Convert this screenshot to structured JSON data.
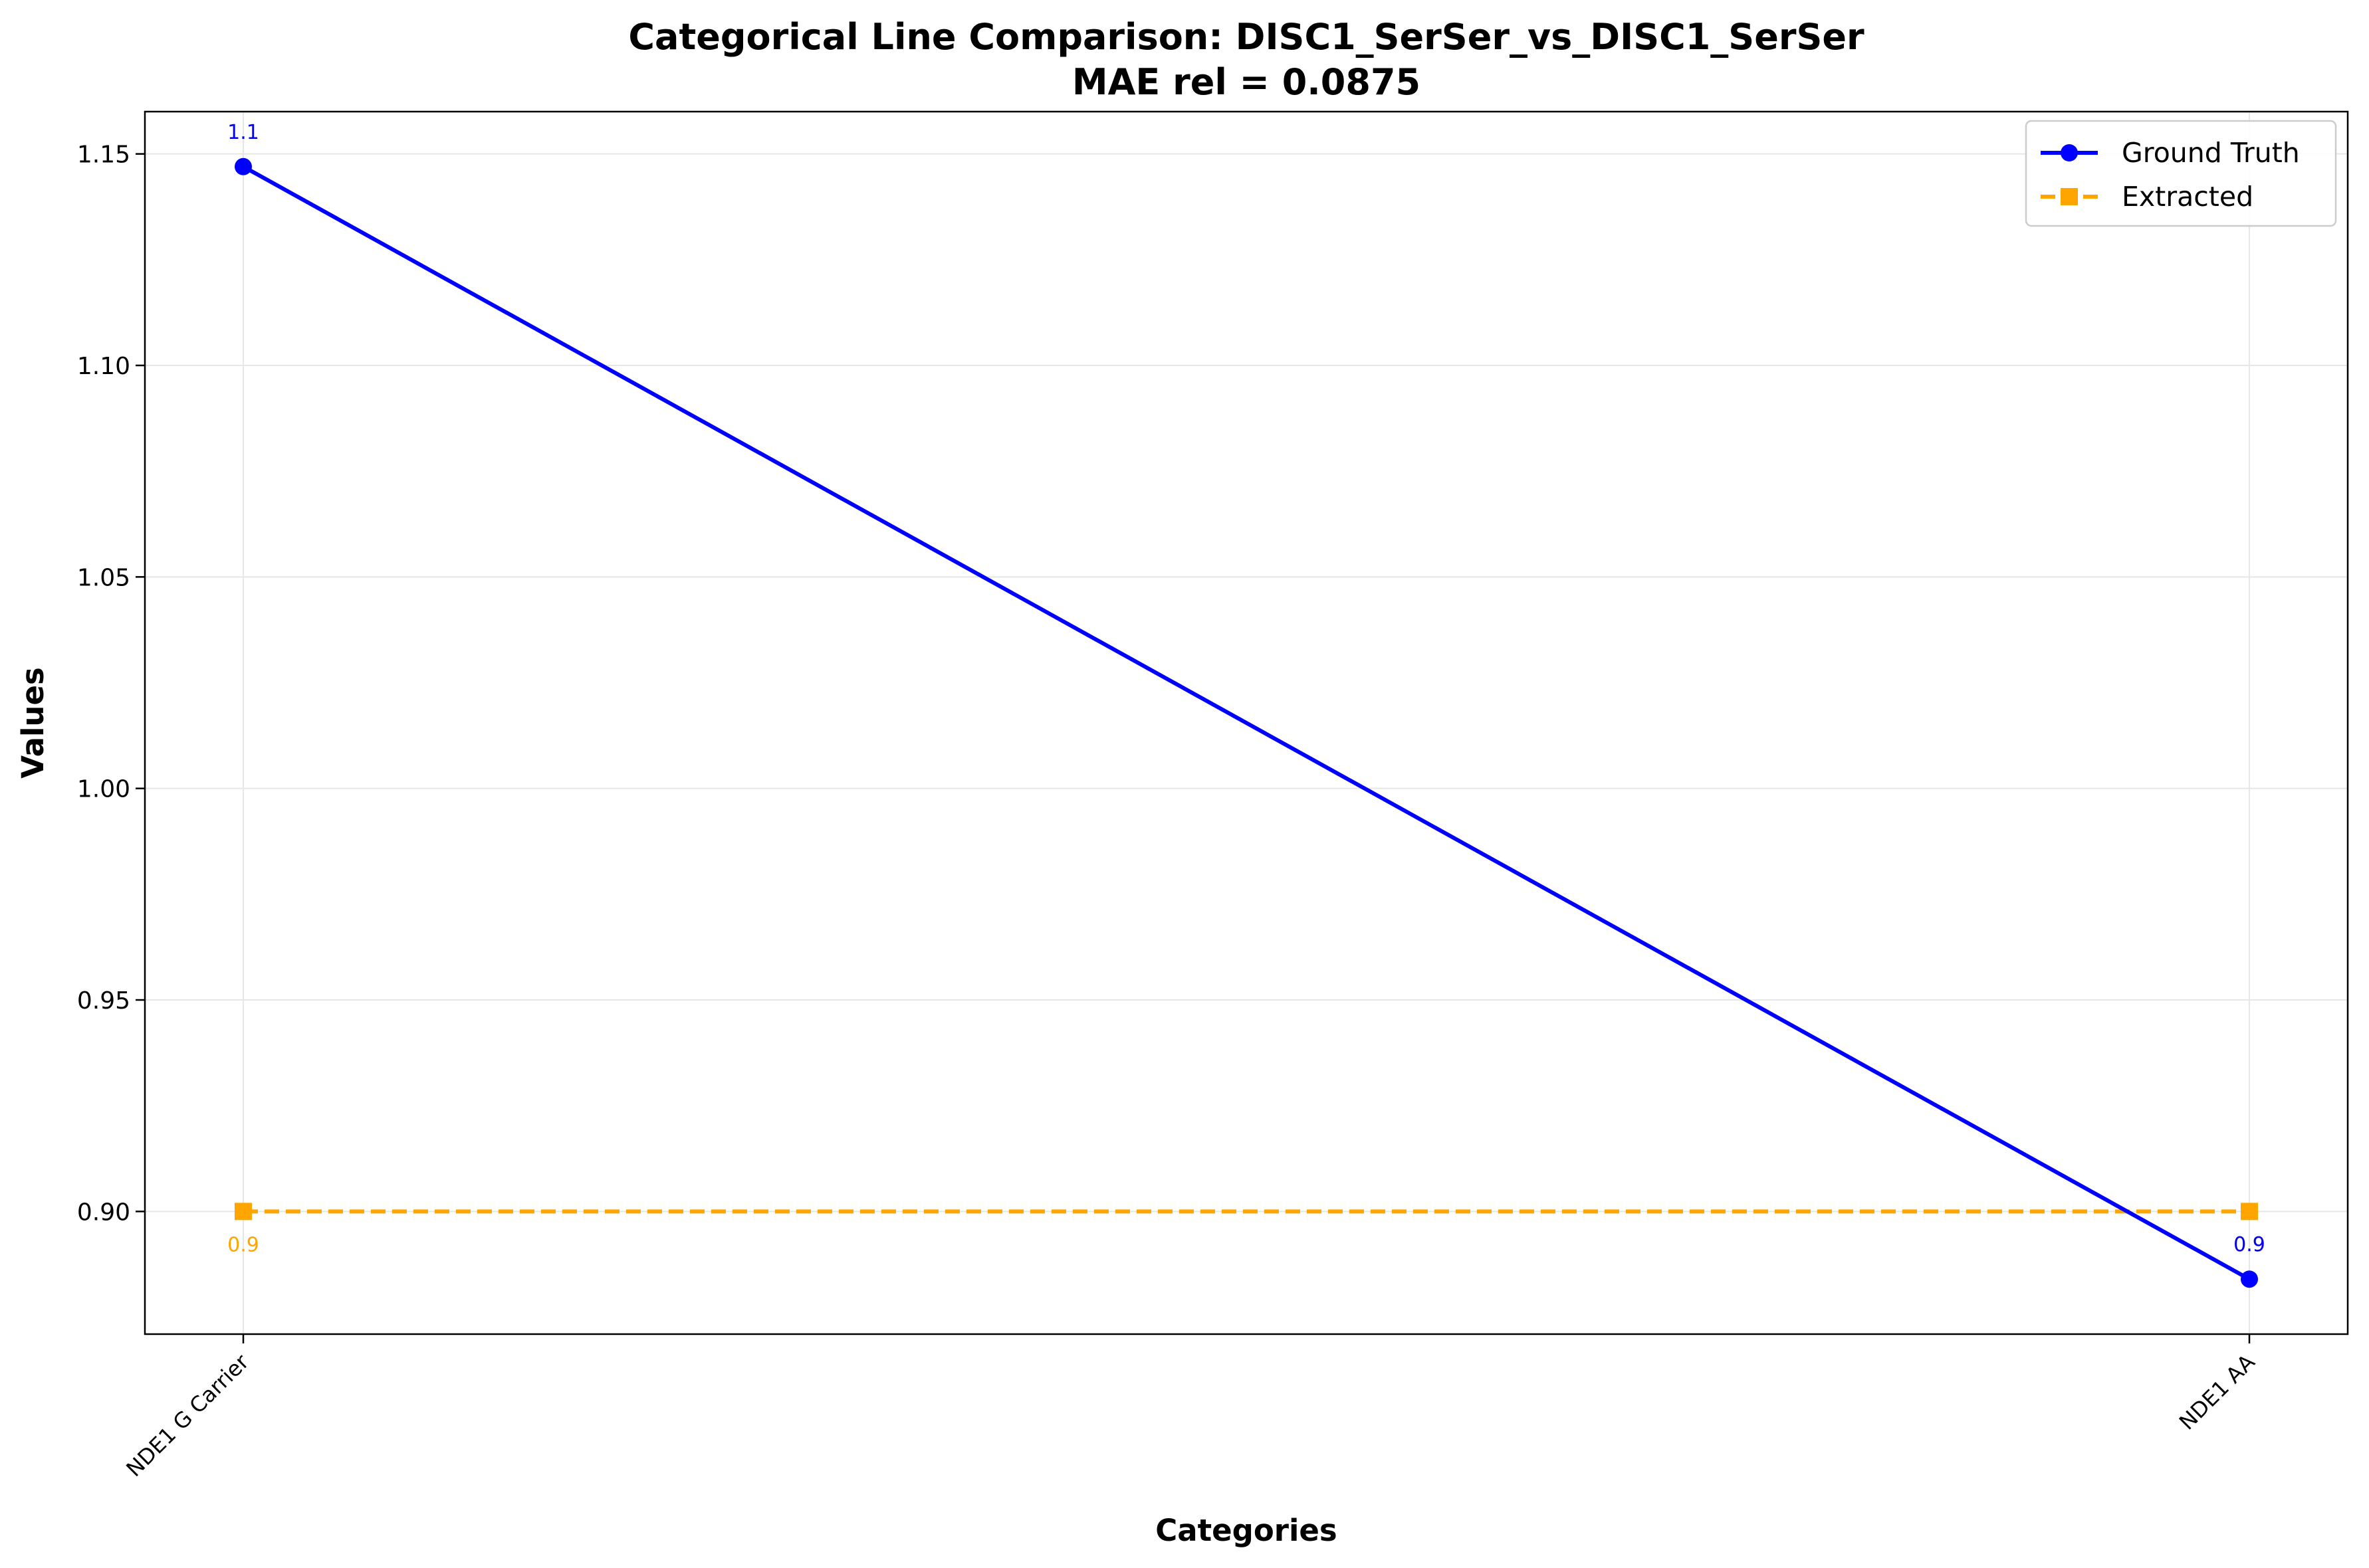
{
  "chart_data": {
    "type": "line",
    "title": "Categorical Line Comparison: DISC1_SerSer_vs_DISC1_SerSer",
    "subtitle": "MAE rel = 0.0875",
    "xlabel": "Categories",
    "ylabel": "Values",
    "categories": [
      "NDE1 G Carrier",
      "NDE1 AA"
    ],
    "ylim": [
      0.871,
      1.16
    ],
    "yticks": [
      0.9,
      0.95,
      1.0,
      1.05,
      1.1,
      1.15
    ],
    "ytick_labels": [
      "0.90",
      "0.95",
      "1.00",
      "1.05",
      "1.10",
      "1.15"
    ],
    "grid": true,
    "legend_position": "top-right",
    "series": [
      {
        "name": "Ground Truth",
        "values": [
          1.147,
          0.884
        ],
        "point_labels": [
          "1.1",
          "0.9"
        ],
        "color": "#0000ff",
        "marker": "circle",
        "line_style": "solid",
        "label_position": "above"
      },
      {
        "name": "Extracted",
        "values": [
          0.9,
          0.9
        ],
        "point_labels": [
          "0.9",
          "0.9"
        ],
        "color": "#ffa500",
        "marker": "square",
        "line_style": "dashed",
        "label_position": "below"
      }
    ]
  }
}
